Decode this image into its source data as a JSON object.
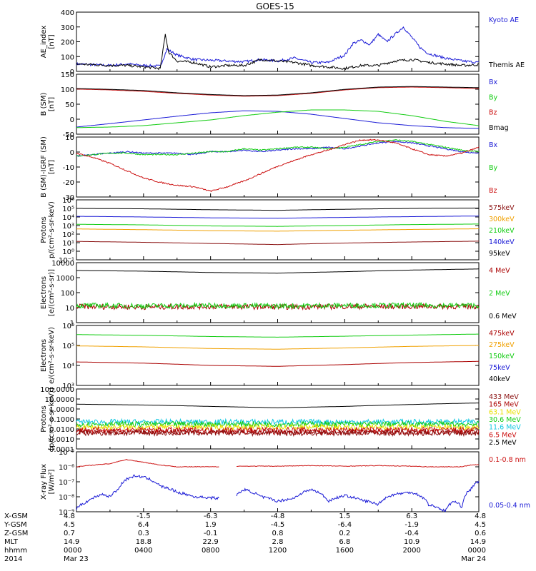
{
  "title": "GOES-15",
  "colors": {
    "blue": "#1a1ad6",
    "black": "#000000",
    "red": "#cc1111",
    "green": "#11cc11",
    "orange": "#f0a000",
    "cyan": "#10c8e0",
    "yellow": "#e8e000",
    "maroon": "#8a1010",
    "darkred": "#aa0000"
  },
  "panels": [
    {
      "ylabel": [
        "AE_index",
        "[nT]"
      ],
      "ytick_labels": [
        "0",
        "100",
        "200",
        "300",
        "400"
      ],
      "ylim": [
        0,
        400
      ],
      "series": [
        {
          "name": "Kyoto AE",
          "color": "blue"
        },
        {
          "name": "Themis AE",
          "color": "black"
        }
      ]
    },
    {
      "ylabel": [
        "B (SM)",
        "[nT]"
      ],
      "ytick_labels": [
        "-50",
        "0",
        "50",
        "100",
        "150"
      ],
      "ylim": [
        -55,
        155
      ],
      "series": [
        {
          "name": "Bx",
          "color": "blue"
        },
        {
          "name": "By",
          "color": "green"
        },
        {
          "name": "Bz",
          "color": "red"
        },
        {
          "name": "Bmag",
          "color": "black"
        }
      ]
    },
    {
      "ylabel": [
        "B (SM)-IGRF (SM)",
        "[nT]"
      ],
      "ytick_labels": [
        "-30",
        "-20",
        "-10",
        "0",
        "10"
      ],
      "ylim": [
        -31,
        10
      ],
      "series": [
        {
          "name": "Bx",
          "color": "blue"
        },
        {
          "name": "By",
          "color": "green"
        },
        {
          "name": "Bz",
          "color": "red"
        }
      ]
    },
    {
      "ylabel": [
        "Protons",
        "p/(cm²-s-sr-keV)"
      ],
      "ytick_labels": [
        "10⁻¹",
        "10⁰",
        "10¹",
        "10²",
        "10³",
        "10⁴",
        "10⁵",
        "10⁶"
      ],
      "log": true,
      "series": [
        {
          "name": "575keV",
          "color": "maroon"
        },
        {
          "name": "300keV",
          "color": "orange"
        },
        {
          "name": "210keV",
          "color": "green"
        },
        {
          "name": "140keV",
          "color": "blue"
        },
        {
          "name": "95keV",
          "color": "black"
        }
      ]
    },
    {
      "ylabel": [
        "Electrons",
        "[e/(cm²-s-sr)]"
      ],
      "ytick_labels": [
        "1",
        "10",
        "100",
        "1000",
        "10000"
      ],
      "log": true,
      "series": [
        {
          "name": "4 MeV",
          "color": "darkred"
        },
        {
          "name": "2 MeV",
          "color": "green"
        },
        {
          "name": "0.6 MeV",
          "color": "black"
        }
      ]
    },
    {
      "ylabel": [
        "Electrons",
        "e/(cm²-s-sr-keV)"
      ],
      "ytick_labels": [
        "10³",
        "10⁴",
        "10⁵",
        "10⁶"
      ],
      "log": true,
      "series": [
        {
          "name": "475keV",
          "color": "darkred"
        },
        {
          "name": "275keV",
          "color": "orange"
        },
        {
          "name": "150keV",
          "color": "green"
        },
        {
          "name": "75keV",
          "color": "blue"
        },
        {
          "name": "40keV",
          "color": "black"
        }
      ]
    },
    {
      "ylabel": [
        "Protons",
        "[p/(cm²-s-sr-keV)]"
      ],
      "ytick_labels": [
        "0.0001",
        "0.0010",
        "0.0100",
        "0.1000",
        "1.0000",
        "10.0000",
        "100.0000"
      ],
      "log": true,
      "series": [
        {
          "name": "433 MeV",
          "color": "maroon"
        },
        {
          "name": "165 MeV",
          "color": "darkred"
        },
        {
          "name": "63.1 MeV",
          "color": "yellow"
        },
        {
          "name": "30.6 MeV",
          "color": "green"
        },
        {
          "name": "11.6 MeV",
          "color": "cyan"
        },
        {
          "name": "6.5 MeV",
          "color": "red"
        },
        {
          "name": "2.5 MeV",
          "color": "black"
        }
      ]
    },
    {
      "ylabel": [
        "X-ray Flux",
        "[W/m²]"
      ],
      "ytick_labels": [
        "10⁻⁹",
        "10⁻⁸",
        "10⁻⁷",
        "10⁻⁶",
        "10⁻⁵"
      ],
      "log": true,
      "series": [
        {
          "name": "0.1-0.8 nm",
          "color": "red"
        },
        {
          "name": "0.05-0.4 nm",
          "color": "blue"
        }
      ]
    }
  ],
  "ephemeris": {
    "row_labels": [
      "X-GSM",
      "Y-GSM",
      "Z-GSM",
      "MLT",
      "hhmm",
      "2014"
    ],
    "columns": [
      [
        "4.8",
        "4.5",
        "0.7",
        "14.9",
        "0000",
        "Mar 23"
      ],
      [
        "-1.5",
        "6.4",
        "0.3",
        "18.8",
        "0400",
        ""
      ],
      [
        "-6.3",
        "1.9",
        "-0.1",
        "22.9",
        "0800",
        ""
      ],
      [
        "-4.8",
        "-4.5",
        "0.8",
        "2.8",
        "1200",
        ""
      ],
      [
        "1.5",
        "-6.4",
        "0.2",
        "6.8",
        "1600",
        ""
      ],
      [
        "6.3",
        "-1.9",
        "-0.4",
        "10.9",
        "2000",
        ""
      ],
      [
        "4.8",
        "4.5",
        "0.6",
        "14.9",
        "0000",
        "Mar 24"
      ]
    ]
  },
  "chart_data": [
    {
      "type": "line",
      "title": "GOES-15",
      "ylabel": "AE_index [nT]",
      "x_unit": "hours since 2014-03-23 00:00",
      "ylim": [
        0,
        400
      ],
      "series": [
        {
          "name": "Kyoto AE",
          "x": [
            0,
            1,
            2,
            3,
            4,
            5,
            5.4,
            6,
            7,
            8,
            9,
            10,
            11,
            12,
            13,
            14,
            15,
            16,
            16.5,
            17,
            17.5,
            18,
            18.5,
            19,
            19.5,
            20,
            20.5,
            21,
            22,
            23,
            24
          ],
          "values": [
            50,
            45,
            40,
            50,
            40,
            35,
            150,
            110,
            80,
            75,
            70,
            65,
            80,
            70,
            90,
            60,
            60,
            110,
            190,
            210,
            180,
            250,
            200,
            250,
            300,
            230,
            160,
            120,
            90,
            70,
            60
          ]
        },
        {
          "name": "Themis AE",
          "x": [
            0,
            1,
            2,
            3,
            4,
            5,
            5.3,
            5.5,
            6,
            7,
            8,
            9,
            10,
            11,
            12,
            13,
            14,
            15,
            16,
            17,
            18,
            19,
            20,
            21,
            22,
            23,
            24
          ],
          "values": [
            50,
            45,
            40,
            40,
            30,
            20,
            250,
            130,
            70,
            60,
            30,
            40,
            40,
            80,
            70,
            60,
            40,
            30,
            20,
            40,
            40,
            70,
            80,
            60,
            50,
            40,
            45
          ]
        }
      ]
    },
    {
      "type": "line",
      "ylabel": "B (SM) [nT]",
      "ylim": [
        -55,
        155
      ],
      "x": [
        0,
        2,
        4,
        6,
        8,
        10,
        12,
        14,
        16,
        18,
        20,
        22,
        24
      ],
      "series": [
        {
          "name": "Bx",
          "values": [
            -30,
            -18,
            -5,
            8,
            20,
            27,
            25,
            15,
            0,
            -15,
            -25,
            -32,
            -35
          ]
        },
        {
          "name": "By",
          "values": [
            -32,
            -30,
            -25,
            -15,
            -5,
            10,
            22,
            30,
            30,
            25,
            10,
            -10,
            -25
          ]
        },
        {
          "name": "Bz",
          "values": [
            103,
            100,
            95,
            88,
            82,
            78,
            80,
            88,
            100,
            108,
            110,
            108,
            105
          ]
        },
        {
          "name": "Bmag",
          "values": [
            105,
            102,
            98,
            90,
            84,
            80,
            82,
            90,
            102,
            110,
            112,
            110,
            108
          ]
        }
      ]
    },
    {
      "type": "line",
      "ylabel": "B (SM)-IGRF (SM) [nT]",
      "ylim": [
        -31,
        10
      ],
      "x": [
        0,
        1,
        2,
        3,
        4,
        5,
        6,
        7,
        8,
        9,
        10,
        11,
        12,
        13,
        14,
        15,
        16,
        17,
        18,
        19,
        20,
        21,
        22,
        23,
        24
      ],
      "series": [
        {
          "name": "Bx",
          "values": [
            -3,
            -2,
            -1,
            0,
            -1,
            -1,
            -1,
            -2,
            0,
            0,
            1,
            0,
            1,
            2,
            2,
            3,
            2,
            4,
            6,
            7,
            6,
            4,
            2,
            0,
            -1
          ]
        },
        {
          "name": "By",
          "values": [
            -3,
            -2,
            -1,
            -1,
            -2,
            -2,
            -2,
            -1,
            0,
            0,
            2,
            1,
            2,
            3,
            3,
            2,
            3,
            5,
            7,
            8,
            7,
            5,
            3,
            1,
            0
          ]
        },
        {
          "name": "Bz",
          "values": [
            -1,
            -4,
            -8,
            -13,
            -18,
            -21,
            -23,
            -24,
            -27,
            -24,
            -20,
            -15,
            -10,
            -6,
            -2,
            1,
            5,
            8,
            8,
            6,
            2,
            -2,
            -3,
            -1,
            3
          ]
        }
      ]
    },
    {
      "type": "line",
      "ylabel": "Protons p/(cm²-s-sr-keV)",
      "log_scale": true,
      "ylim": [
        0.1,
        1000000
      ],
      "x": [
        0,
        4,
        8,
        12,
        16,
        20,
        24
      ],
      "series": [
        {
          "name": "575keV",
          "values": [
            14,
            11,
            8,
            6,
            9,
            12,
            15
          ]
        },
        {
          "name": "300keV",
          "values": [
            400,
            330,
            250,
            220,
            280,
            350,
            420
          ]
        },
        {
          "name": "210keV",
          "values": [
            1400,
            1200,
            900,
            800,
            1000,
            1300,
            1500
          ]
        },
        {
          "name": "140keV",
          "values": [
            12000,
            10000,
            8000,
            7000,
            9000,
            11000,
            13000
          ]
        },
        {
          "name": "95keV",
          "values": [
            100000,
            90000,
            70000,
            60000,
            80000,
            100000,
            110000
          ]
        }
      ]
    },
    {
      "type": "line",
      "ylabel": "Electrons [e/(cm²-s-sr)]",
      "log_scale": true,
      "ylim": [
        1,
        10000
      ],
      "x": [
        0,
        4,
        8,
        12,
        16,
        20,
        24
      ],
      "series": [
        {
          "name": "4 MeV",
          "values": [
            12,
            11,
            12,
            11,
            12,
            12,
            12
          ]
        },
        {
          "name": "2 MeV",
          "values": [
            14,
            13,
            14,
            13,
            14,
            14,
            14
          ]
        },
        {
          "name": "0.6 MeV",
          "values": [
            3000,
            2700,
            2200,
            2000,
            2500,
            3200,
            3800
          ]
        }
      ]
    },
    {
      "type": "line",
      "ylabel": "Electrons e/(cm²-s-sr-keV)",
      "log_scale": true,
      "ylim": [
        1000,
        1000000
      ],
      "x": [
        0,
        4,
        8,
        12,
        16,
        20,
        24
      ],
      "series": [
        {
          "name": "475keV",
          "values": [
            15000,
            13000,
            10000,
            9000,
            11000,
            14000,
            16000
          ]
        },
        {
          "name": "275keV",
          "values": [
            95000,
            85000,
            70000,
            65000,
            75000,
            90000,
            100000
          ]
        },
        {
          "name": "150keV",
          "values": [
            350000,
            320000,
            280000,
            260000,
            290000,
            330000,
            370000
          ]
        }
      ]
    },
    {
      "type": "line",
      "ylabel": "Protons [p/(cm²-s-sr-keV)]",
      "log_scale": true,
      "ylim": [
        0.0001,
        100
      ],
      "x": [
        0,
        4,
        8,
        12,
        16,
        20,
        24
      ],
      "series": [
        {
          "name": "2.5 MeV",
          "values": [
            3,
            2.5,
            1.8,
            1.3,
            1.8,
            2.8,
            4
          ]
        },
        {
          "name": "11.6 MeV",
          "values": [
            0.05,
            0.05,
            0.05,
            0.05,
            0.05,
            0.05,
            0.05
          ]
        },
        {
          "name": "30.6 MeV",
          "values": [
            0.03,
            0.03,
            0.03,
            0.03,
            0.03,
            0.03,
            0.03
          ]
        },
        {
          "name": "63.1 MeV",
          "values": [
            0.015,
            0.015,
            0.015,
            0.015,
            0.015,
            0.015,
            0.015
          ]
        },
        {
          "name": "6.5 MeV",
          "values": [
            0.008,
            0.008,
            0.008,
            0.008,
            0.008,
            0.008,
            0.008
          ]
        },
        {
          "name": "165 MeV",
          "values": [
            0.005,
            0.005,
            0.005,
            0.005,
            0.005,
            0.005,
            0.005
          ]
        },
        {
          "name": "433 MeV",
          "values": [
            0.004,
            0.004,
            0.004,
            0.004,
            0.004,
            0.004,
            0.004
          ]
        }
      ]
    },
    {
      "type": "line",
      "ylabel": "X-ray Flux [W/m²]",
      "log_scale": true,
      "ylim": [
        1e-09,
        1e-05
      ],
      "series": [
        {
          "name": "0.1-0.8 nm",
          "x": [
            0,
            1,
            2,
            3,
            3.5,
            4,
            5,
            6,
            7,
            8.5,
            9,
            9.5,
            10,
            12,
            14,
            16,
            18,
            20,
            21,
            22,
            23,
            23.5,
            24
          ],
          "values": [
            1e-06,
            1.3e-06,
            1.6e-06,
            3e-06,
            2.5e-06,
            2e-06,
            1.3e-06,
            1e-06,
            1e-06,
            1e-06,
            null,
            1.1e-06,
            1.1e-06,
            1.1e-06,
            1.2e-06,
            1.1e-06,
            1.2e-06,
            1.1e-06,
            1e-06,
            1e-06,
            1e-06,
            1.3e-06,
            1.4e-06
          ]
        },
        {
          "name": "0.05-0.4 nm",
          "x": [
            0,
            0.5,
            1,
            1.5,
            2,
            2.5,
            3,
            3.5,
            4,
            5,
            6,
            7,
            8.5,
            9,
            9.5,
            10,
            11,
            12,
            13,
            14,
            15,
            16,
            17,
            18,
            19,
            20,
            21,
            22,
            22.5,
            23,
            23.5,
            24
          ],
          "values": [
            1.5e-09,
            4e-09,
            8e-09,
            1.5e-08,
            1e-08,
            3e-08,
            1.5e-07,
            2.5e-07,
            2e-07,
            5e-08,
            2e-08,
            1e-08,
            8e-09,
            null,
            1e-08,
            3e-08,
            1e-08,
            5e-09,
            8e-09,
            3e-08,
            5e-09,
            1.2e-08,
            6e-09,
            3e-09,
            1.5e-08,
            2e-08,
            3e-09,
            1e-09,
            5e-09,
            2e-09,
            3e-08,
            1e-07
          ]
        }
      ]
    }
  ]
}
